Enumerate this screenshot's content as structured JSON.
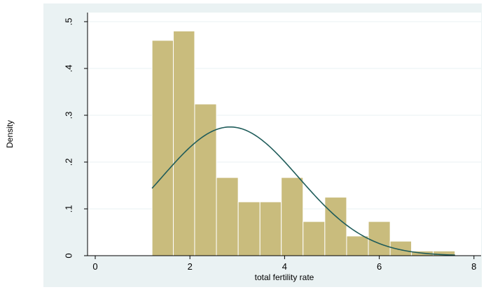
{
  "chart_data": {
    "type": "bar",
    "subtype": "histogram with normal density overlay",
    "title": "",
    "xlabel": "total fertility rate",
    "ylabel": "Density",
    "xlim": [
      -0.2,
      8.1
    ],
    "ylim": [
      0,
      0.52
    ],
    "xticks": [
      0,
      2,
      4,
      6,
      8
    ],
    "yticks": [
      0,
      0.1,
      0.2,
      0.3,
      0.4,
      0.5
    ],
    "yticklabels": [
      "0",
      ".1",
      ".2",
      ".3",
      ".4",
      ".5"
    ],
    "grid": "horizontal",
    "colors": {
      "plot_background": "#eaf2f3",
      "panel_background": "#ffffff",
      "bar_fill": "#c9bc7d",
      "bar_edge": "#ffffff",
      "curve": "#1f5c5a",
      "axis": "#000000",
      "grid": "#eaf2f3"
    },
    "bins": [
      {
        "x0": 1.2,
        "x1": 1.65,
        "density": 0.46
      },
      {
        "x0": 1.65,
        "x1": 2.1,
        "density": 0.48
      },
      {
        "x0": 2.1,
        "x1": 2.56,
        "density": 0.324
      },
      {
        "x0": 2.56,
        "x1": 3.02,
        "density": 0.167
      },
      {
        "x0": 3.02,
        "x1": 3.48,
        "density": 0.115
      },
      {
        "x0": 3.48,
        "x1": 3.93,
        "density": 0.115
      },
      {
        "x0": 3.93,
        "x1": 4.39,
        "density": 0.167
      },
      {
        "x0": 4.39,
        "x1": 4.85,
        "density": 0.073
      },
      {
        "x0": 4.85,
        "x1": 5.31,
        "density": 0.125
      },
      {
        "x0": 5.31,
        "x1": 5.77,
        "density": 0.042
      },
      {
        "x0": 5.77,
        "x1": 6.23,
        "density": 0.073
      },
      {
        "x0": 6.23,
        "x1": 6.68,
        "density": 0.031
      },
      {
        "x0": 6.68,
        "x1": 7.14,
        "density": 0.01
      },
      {
        "x0": 7.14,
        "x1": 7.6,
        "density": 0.01
      }
    ],
    "normal_curve": {
      "mean": 2.85,
      "sd": 1.45,
      "x_range": [
        1.2,
        7.6
      ],
      "peak_density": 0.275
    }
  }
}
